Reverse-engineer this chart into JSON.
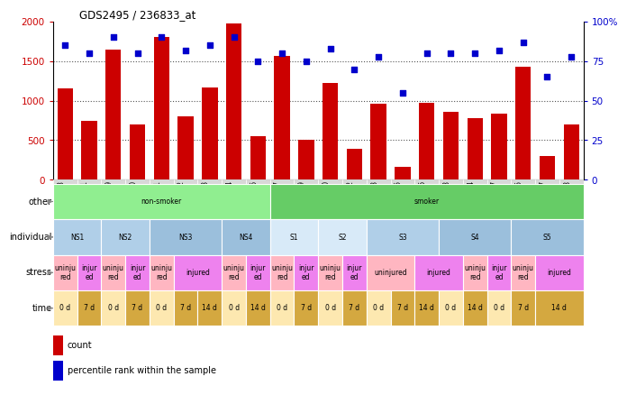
{
  "title": "GDS2495 / 236833_at",
  "samples": [
    "GSM122528",
    "GSM122531",
    "GSM122539",
    "GSM122540",
    "GSM122541",
    "GSM122542",
    "GSM122543",
    "GSM122544",
    "GSM122546",
    "GSM122527",
    "GSM122529",
    "GSM122530",
    "GSM122532",
    "GSM122533",
    "GSM122535",
    "GSM122536",
    "GSM122538",
    "GSM122534",
    "GSM122537",
    "GSM122545",
    "GSM122547",
    "GSM122548"
  ],
  "counts": [
    1150,
    750,
    1650,
    700,
    1800,
    800,
    1170,
    1980,
    550,
    1570,
    510,
    1220,
    390,
    960,
    160,
    970,
    860,
    780,
    840,
    1430,
    300,
    700
  ],
  "percentile": [
    85,
    80,
    90,
    80,
    90,
    82,
    85,
    90,
    75,
    80,
    75,
    83,
    70,
    78,
    55,
    80,
    80,
    80,
    82,
    87,
    65,
    78
  ],
  "bar_color": "#cc0000",
  "dot_color": "#0000cc",
  "ylim_left": [
    0,
    2000
  ],
  "ylim_right": [
    0,
    100
  ],
  "yticks_left": [
    0,
    500,
    1000,
    1500,
    2000
  ],
  "yticks_right": [
    0,
    25,
    50,
    75,
    100
  ],
  "other_row": {
    "label": "other",
    "segments": [
      {
        "text": "non-smoker",
        "start": 0,
        "end": 8,
        "color": "#90ee90"
      },
      {
        "text": "smoker",
        "start": 9,
        "end": 21,
        "color": "#66cc66"
      }
    ]
  },
  "individual_row": {
    "label": "individual",
    "segments": [
      {
        "text": "NS1",
        "start": 0,
        "end": 1,
        "color": "#b0cfe8"
      },
      {
        "text": "NS2",
        "start": 2,
        "end": 3,
        "color": "#b0cfe8"
      },
      {
        "text": "NS3",
        "start": 4,
        "end": 6,
        "color": "#9bbfdc"
      },
      {
        "text": "NS4",
        "start": 7,
        "end": 8,
        "color": "#9bbfdc"
      },
      {
        "text": "S1",
        "start": 9,
        "end": 10,
        "color": "#d8eaf8"
      },
      {
        "text": "S2",
        "start": 11,
        "end": 12,
        "color": "#d8eaf8"
      },
      {
        "text": "S3",
        "start": 13,
        "end": 15,
        "color": "#b0cfe8"
      },
      {
        "text": "S4",
        "start": 16,
        "end": 18,
        "color": "#9bbfdc"
      },
      {
        "text": "S5",
        "start": 19,
        "end": 21,
        "color": "#9bbfdc"
      }
    ]
  },
  "stress_row": {
    "label": "stress",
    "segments": [
      {
        "text": "uninju\nred",
        "start": 0,
        "end": 0,
        "color": "#ffb6c1"
      },
      {
        "text": "injur\ned",
        "start": 1,
        "end": 1,
        "color": "#ee82ee"
      },
      {
        "text": "uninju\nred",
        "start": 2,
        "end": 2,
        "color": "#ffb6c1"
      },
      {
        "text": "injur\ned",
        "start": 3,
        "end": 3,
        "color": "#ee82ee"
      },
      {
        "text": "uninju\nred",
        "start": 4,
        "end": 4,
        "color": "#ffb6c1"
      },
      {
        "text": "injured",
        "start": 5,
        "end": 6,
        "color": "#ee82ee"
      },
      {
        "text": "uninju\nred",
        "start": 7,
        "end": 7,
        "color": "#ffb6c1"
      },
      {
        "text": "injur\ned",
        "start": 8,
        "end": 8,
        "color": "#ee82ee"
      },
      {
        "text": "uninju\nred",
        "start": 9,
        "end": 9,
        "color": "#ffb6c1"
      },
      {
        "text": "injur\ned",
        "start": 10,
        "end": 10,
        "color": "#ee82ee"
      },
      {
        "text": "uninju\nred",
        "start": 11,
        "end": 11,
        "color": "#ffb6c1"
      },
      {
        "text": "injur\ned",
        "start": 12,
        "end": 12,
        "color": "#ee82ee"
      },
      {
        "text": "uninjured",
        "start": 13,
        "end": 14,
        "color": "#ffb6c1"
      },
      {
        "text": "injured",
        "start": 15,
        "end": 16,
        "color": "#ee82ee"
      },
      {
        "text": "uninju\nred",
        "start": 17,
        "end": 17,
        "color": "#ffb6c1"
      },
      {
        "text": "injur\ned",
        "start": 18,
        "end": 18,
        "color": "#ee82ee"
      },
      {
        "text": "uninju\nred",
        "start": 19,
        "end": 19,
        "color": "#ffb6c1"
      },
      {
        "text": "injured",
        "start": 20,
        "end": 21,
        "color": "#ee82ee"
      }
    ]
  },
  "time_row": {
    "label": "time",
    "segments": [
      {
        "text": "0 d",
        "start": 0,
        "end": 0,
        "color": "#fde8b0"
      },
      {
        "text": "7 d",
        "start": 1,
        "end": 1,
        "color": "#d4a840"
      },
      {
        "text": "0 d",
        "start": 2,
        "end": 2,
        "color": "#fde8b0"
      },
      {
        "text": "7 d",
        "start": 3,
        "end": 3,
        "color": "#d4a840"
      },
      {
        "text": "0 d",
        "start": 4,
        "end": 4,
        "color": "#fde8b0"
      },
      {
        "text": "7 d",
        "start": 5,
        "end": 5,
        "color": "#d4a840"
      },
      {
        "text": "14 d",
        "start": 6,
        "end": 6,
        "color": "#d4a840"
      },
      {
        "text": "0 d",
        "start": 7,
        "end": 7,
        "color": "#fde8b0"
      },
      {
        "text": "14 d",
        "start": 8,
        "end": 8,
        "color": "#d4a840"
      },
      {
        "text": "0 d",
        "start": 9,
        "end": 9,
        "color": "#fde8b0"
      },
      {
        "text": "7 d",
        "start": 10,
        "end": 10,
        "color": "#d4a840"
      },
      {
        "text": "0 d",
        "start": 11,
        "end": 11,
        "color": "#fde8b0"
      },
      {
        "text": "7 d",
        "start": 12,
        "end": 12,
        "color": "#d4a840"
      },
      {
        "text": "0 d",
        "start": 13,
        "end": 13,
        "color": "#fde8b0"
      },
      {
        "text": "7 d",
        "start": 14,
        "end": 14,
        "color": "#d4a840"
      },
      {
        "text": "14 d",
        "start": 15,
        "end": 15,
        "color": "#d4a840"
      },
      {
        "text": "0 d",
        "start": 16,
        "end": 16,
        "color": "#fde8b0"
      },
      {
        "text": "14 d",
        "start": 17,
        "end": 17,
        "color": "#d4a840"
      },
      {
        "text": "0 d",
        "start": 18,
        "end": 18,
        "color": "#fde8b0"
      },
      {
        "text": "7 d",
        "start": 19,
        "end": 19,
        "color": "#d4a840"
      },
      {
        "text": "14 d",
        "start": 20,
        "end": 21,
        "color": "#d4a840"
      }
    ]
  },
  "legend_count_color": "#cc0000",
  "legend_percentile_color": "#0000cc",
  "background_color": "#ffffff",
  "label_arrow_color": "#888888",
  "xticklabel_bg": "#d8d8d8"
}
